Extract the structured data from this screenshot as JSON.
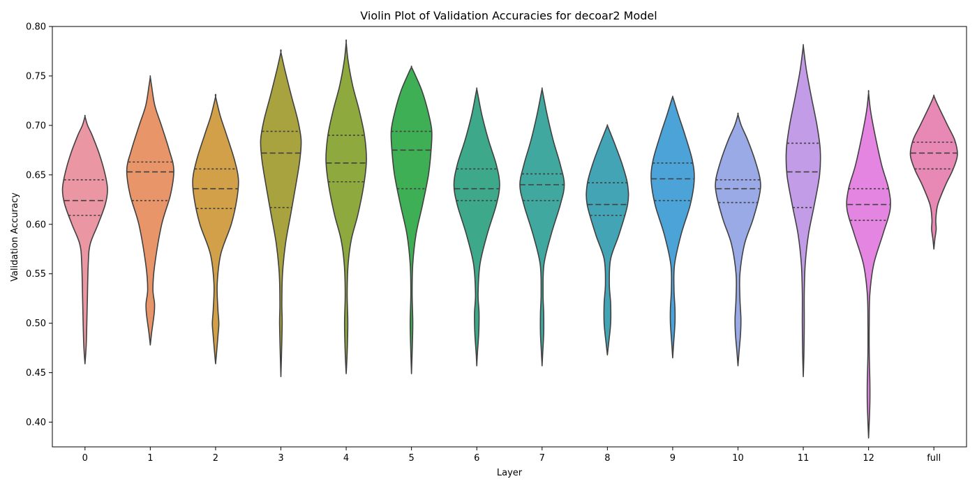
{
  "chart_data": {
    "type": "violin",
    "title": "Violin Plot of Validation Accuracies for decoar2 Model",
    "xlabel": "Layer",
    "ylabel": "Validation Accuracy",
    "ylim": [
      0.375,
      0.8
    ],
    "yticks": [
      "0.40",
      "0.45",
      "0.50",
      "0.55",
      "0.60",
      "0.65",
      "0.70",
      "0.75",
      "0.80"
    ],
    "categories": [
      "0",
      "1",
      "2",
      "3",
      "4",
      "5",
      "6",
      "7",
      "8",
      "9",
      "10",
      "11",
      "12",
      "full"
    ],
    "grid": false,
    "legend": "none",
    "violins": [
      {
        "category": "0",
        "color": "#ea96a3",
        "min": 0.459,
        "max": 0.709,
        "q1": 0.609,
        "median": 0.624,
        "q3": 0.645,
        "profile": [
          [
            0.459,
            0.0
          ],
          [
            0.48,
            0.04
          ],
          [
            0.52,
            0.07
          ],
          [
            0.56,
            0.1
          ],
          [
            0.58,
            0.16
          ],
          [
            0.6,
            0.4
          ],
          [
            0.62,
            0.62
          ],
          [
            0.635,
            0.69
          ],
          [
            0.65,
            0.62
          ],
          [
            0.67,
            0.45
          ],
          [
            0.69,
            0.22
          ],
          [
            0.7,
            0.08
          ],
          [
            0.709,
            0.0
          ]
        ]
      },
      {
        "category": "1",
        "color": "#e8956a",
        "min": 0.478,
        "max": 0.749,
        "q1": 0.624,
        "median": 0.653,
        "q3": 0.663,
        "profile": [
          [
            0.478,
            0.0
          ],
          [
            0.49,
            0.04
          ],
          [
            0.51,
            0.12
          ],
          [
            0.52,
            0.13
          ],
          [
            0.535,
            0.08
          ],
          [
            0.56,
            0.14
          ],
          [
            0.6,
            0.35
          ],
          [
            0.63,
            0.62
          ],
          [
            0.655,
            0.72
          ],
          [
            0.675,
            0.58
          ],
          [
            0.7,
            0.34
          ],
          [
            0.72,
            0.14
          ],
          [
            0.74,
            0.04
          ],
          [
            0.749,
            0.0
          ]
        ]
      },
      {
        "category": "2",
        "color": "#d2a048",
        "min": 0.459,
        "max": 0.729,
        "q1": 0.616,
        "median": 0.636,
        "q3": 0.656,
        "profile": [
          [
            0.459,
            0.0
          ],
          [
            0.47,
            0.03
          ],
          [
            0.49,
            0.08
          ],
          [
            0.5,
            0.1
          ],
          [
            0.515,
            0.07
          ],
          [
            0.54,
            0.05
          ],
          [
            0.57,
            0.16
          ],
          [
            0.6,
            0.48
          ],
          [
            0.625,
            0.65
          ],
          [
            0.645,
            0.7
          ],
          [
            0.665,
            0.58
          ],
          [
            0.69,
            0.34
          ],
          [
            0.71,
            0.14
          ],
          [
            0.729,
            0.0
          ]
        ]
      },
      {
        "category": "3",
        "color": "#a8a33f",
        "min": 0.446,
        "max": 0.774,
        "q1": 0.617,
        "median": 0.672,
        "q3": 0.694,
        "profile": [
          [
            0.446,
            0.0
          ],
          [
            0.47,
            0.02
          ],
          [
            0.5,
            0.04
          ],
          [
            0.52,
            0.03
          ],
          [
            0.55,
            0.05
          ],
          [
            0.58,
            0.14
          ],
          [
            0.61,
            0.3
          ],
          [
            0.64,
            0.46
          ],
          [
            0.665,
            0.58
          ],
          [
            0.685,
            0.62
          ],
          [
            0.705,
            0.52
          ],
          [
            0.73,
            0.32
          ],
          [
            0.755,
            0.13
          ],
          [
            0.774,
            0.0
          ]
        ]
      },
      {
        "category": "4",
        "color": "#8ea93e",
        "min": 0.449,
        "max": 0.784,
        "q1": 0.643,
        "median": 0.662,
        "q3": 0.69,
        "profile": [
          [
            0.449,
            0.0
          ],
          [
            0.47,
            0.03
          ],
          [
            0.5,
            0.05
          ],
          [
            0.53,
            0.03
          ],
          [
            0.56,
            0.06
          ],
          [
            0.585,
            0.16
          ],
          [
            0.61,
            0.36
          ],
          [
            0.64,
            0.54
          ],
          [
            0.665,
            0.62
          ],
          [
            0.69,
            0.56
          ],
          [
            0.715,
            0.4
          ],
          [
            0.74,
            0.2
          ],
          [
            0.765,
            0.06
          ],
          [
            0.784,
            0.0
          ]
        ]
      },
      {
        "category": "5",
        "color": "#3eaf54",
        "min": 0.449,
        "max": 0.759,
        "q1": 0.636,
        "median": 0.675,
        "q3": 0.694,
        "profile": [
          [
            0.449,
            0.0
          ],
          [
            0.47,
            0.02
          ],
          [
            0.5,
            0.04
          ],
          [
            0.53,
            0.02
          ],
          [
            0.56,
            0.04
          ],
          [
            0.59,
            0.14
          ],
          [
            0.62,
            0.34
          ],
          [
            0.65,
            0.52
          ],
          [
            0.675,
            0.6
          ],
          [
            0.695,
            0.62
          ],
          [
            0.715,
            0.5
          ],
          [
            0.735,
            0.32
          ],
          [
            0.752,
            0.1
          ],
          [
            0.759,
            0.0
          ]
        ]
      },
      {
        "category": "6",
        "color": "#3da88a",
        "min": 0.457,
        "max": 0.737,
        "q1": 0.624,
        "median": 0.636,
        "q3": 0.656,
        "profile": [
          [
            0.457,
            0.0
          ],
          [
            0.47,
            0.02
          ],
          [
            0.49,
            0.06
          ],
          [
            0.51,
            0.07
          ],
          [
            0.53,
            0.04
          ],
          [
            0.56,
            0.1
          ],
          [
            0.59,
            0.32
          ],
          [
            0.62,
            0.6
          ],
          [
            0.64,
            0.7
          ],
          [
            0.66,
            0.6
          ],
          [
            0.685,
            0.36
          ],
          [
            0.71,
            0.16
          ],
          [
            0.73,
            0.04
          ],
          [
            0.737,
            0.0
          ]
        ]
      },
      {
        "category": "7",
        "color": "#41a8a0",
        "min": 0.457,
        "max": 0.737,
        "q1": 0.624,
        "median": 0.64,
        "q3": 0.651,
        "profile": [
          [
            0.457,
            0.0
          ],
          [
            0.47,
            0.02
          ],
          [
            0.49,
            0.05
          ],
          [
            0.51,
            0.05
          ],
          [
            0.53,
            0.03
          ],
          [
            0.56,
            0.06
          ],
          [
            0.59,
            0.28
          ],
          [
            0.62,
            0.56
          ],
          [
            0.64,
            0.68
          ],
          [
            0.66,
            0.56
          ],
          [
            0.685,
            0.34
          ],
          [
            0.71,
            0.16
          ],
          [
            0.73,
            0.04
          ],
          [
            0.737,
            0.0
          ]
        ]
      },
      {
        "category": "8",
        "color": "#43a4b6",
        "min": 0.468,
        "max": 0.7,
        "q1": 0.609,
        "median": 0.62,
        "q3": 0.642,
        "profile": [
          [
            0.468,
            0.0
          ],
          [
            0.48,
            0.04
          ],
          [
            0.5,
            0.1
          ],
          [
            0.52,
            0.1
          ],
          [
            0.54,
            0.06
          ],
          [
            0.565,
            0.1
          ],
          [
            0.59,
            0.36
          ],
          [
            0.62,
            0.62
          ],
          [
            0.64,
            0.62
          ],
          [
            0.66,
            0.46
          ],
          [
            0.68,
            0.24
          ],
          [
            0.695,
            0.06
          ],
          [
            0.7,
            0.0
          ]
        ]
      },
      {
        "category": "9",
        "color": "#4ba3d8",
        "min": 0.465,
        "max": 0.729,
        "q1": 0.624,
        "median": 0.646,
        "q3": 0.662,
        "profile": [
          [
            0.465,
            0.0
          ],
          [
            0.48,
            0.03
          ],
          [
            0.5,
            0.07
          ],
          [
            0.515,
            0.07
          ],
          [
            0.535,
            0.04
          ],
          [
            0.56,
            0.06
          ],
          [
            0.59,
            0.26
          ],
          [
            0.62,
            0.54
          ],
          [
            0.645,
            0.66
          ],
          [
            0.665,
            0.6
          ],
          [
            0.69,
            0.38
          ],
          [
            0.71,
            0.18
          ],
          [
            0.725,
            0.04
          ],
          [
            0.729,
            0.0
          ]
        ]
      },
      {
        "category": "10",
        "color": "#9aaae6",
        "min": 0.457,
        "max": 0.711,
        "q1": 0.622,
        "median": 0.636,
        "q3": 0.645,
        "profile": [
          [
            0.457,
            0.0
          ],
          [
            0.47,
            0.03
          ],
          [
            0.49,
            0.08
          ],
          [
            0.505,
            0.09
          ],
          [
            0.525,
            0.06
          ],
          [
            0.55,
            0.06
          ],
          [
            0.58,
            0.2
          ],
          [
            0.605,
            0.46
          ],
          [
            0.63,
            0.66
          ],
          [
            0.645,
            0.68
          ],
          [
            0.665,
            0.52
          ],
          [
            0.685,
            0.3
          ],
          [
            0.7,
            0.1
          ],
          [
            0.711,
            0.0
          ]
        ]
      },
      {
        "category": "11",
        "color": "#c29ce6",
        "min": 0.446,
        "max": 0.781,
        "q1": 0.617,
        "median": 0.653,
        "q3": 0.682,
        "profile": [
          [
            0.446,
            0.0
          ],
          [
            0.47,
            0.02
          ],
          [
            0.5,
            0.03
          ],
          [
            0.53,
            0.03
          ],
          [
            0.56,
            0.06
          ],
          [
            0.59,
            0.16
          ],
          [
            0.62,
            0.34
          ],
          [
            0.65,
            0.5
          ],
          [
            0.675,
            0.52
          ],
          [
            0.7,
            0.42
          ],
          [
            0.73,
            0.24
          ],
          [
            0.755,
            0.1
          ],
          [
            0.775,
            0.02
          ],
          [
            0.781,
            0.0
          ]
        ]
      },
      {
        "category": "12",
        "color": "#e585e2",
        "min": 0.384,
        "max": 0.733,
        "q1": 0.604,
        "median": 0.62,
        "q3": 0.636,
        "profile": [
          [
            0.384,
            0.0
          ],
          [
            0.4,
            0.02
          ],
          [
            0.42,
            0.04
          ],
          [
            0.44,
            0.04
          ],
          [
            0.47,
            0.02
          ],
          [
            0.5,
            0.02
          ],
          [
            0.53,
            0.04
          ],
          [
            0.56,
            0.16
          ],
          [
            0.59,
            0.44
          ],
          [
            0.615,
            0.66
          ],
          [
            0.635,
            0.62
          ],
          [
            0.66,
            0.4
          ],
          [
            0.69,
            0.2
          ],
          [
            0.715,
            0.06
          ],
          [
            0.733,
            0.0
          ]
        ]
      },
      {
        "category": "full",
        "color": "#e889b5",
        "min": 0.575,
        "max": 0.73,
        "q1": 0.656,
        "median": 0.672,
        "q3": 0.683,
        "profile": [
          [
            0.575,
            0.0
          ],
          [
            0.585,
            0.03
          ],
          [
            0.595,
            0.07
          ],
          [
            0.605,
            0.06
          ],
          [
            0.62,
            0.12
          ],
          [
            0.64,
            0.36
          ],
          [
            0.655,
            0.58
          ],
          [
            0.67,
            0.72
          ],
          [
            0.685,
            0.64
          ],
          [
            0.7,
            0.42
          ],
          [
            0.715,
            0.2
          ],
          [
            0.725,
            0.06
          ],
          [
            0.73,
            0.0
          ]
        ]
      }
    ]
  }
}
